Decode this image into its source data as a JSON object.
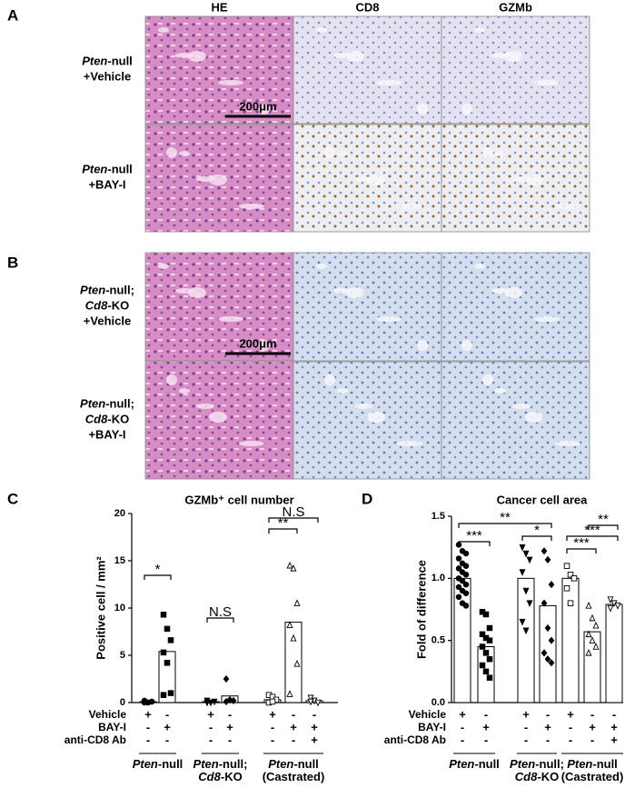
{
  "figure": {
    "panel_a": {
      "label": "A",
      "columns": [
        "HE",
        "CD8",
        "GZMb"
      ],
      "scale_bar": "200μm",
      "rows": [
        {
          "lines": [
            [
              {
                "text": "Pten",
                "italic": true
              },
              {
                "text": "-null"
              }
            ],
            [
              {
                "text": "+Vehicle"
              }
            ]
          ]
        },
        {
          "lines": [
            [
              {
                "text": "Pten",
                "italic": true
              },
              {
                "text": "-null"
              }
            ],
            [
              {
                "text": "+BAY-I"
              }
            ]
          ]
        }
      ]
    },
    "panel_b": {
      "label": "B",
      "scale_bar": "200μm",
      "rows": [
        {
          "lines": [
            [
              {
                "text": "Pten",
                "italic": true
              },
              {
                "text": "-null;"
              }
            ],
            [
              {
                "text": "Cd8",
                "italic": true
              },
              {
                "text": "-KO"
              }
            ],
            [
              {
                "text": "+Vehicle"
              }
            ]
          ]
        },
        {
          "lines": [
            [
              {
                "text": "Pten",
                "italic": true
              },
              {
                "text": "-null;"
              }
            ],
            [
              {
                "text": "Cd8",
                "italic": true
              },
              {
                "text": "-KO"
              }
            ],
            [
              {
                "text": "+BAY-I"
              }
            ]
          ]
        }
      ]
    }
  },
  "chart_data": [
    {
      "type": "bar",
      "panel_label": "C",
      "title": "GZMb⁺ cell number",
      "y_label": "Positive cell / mm²",
      "ylim": [
        0,
        20
      ],
      "yticks": [
        0,
        5,
        10,
        15,
        20
      ],
      "conditions": [
        {
          "name": "Vehicle",
          "marks": [
            "+",
            "-",
            "+",
            "-",
            "+",
            "-",
            "-"
          ]
        },
        {
          "name": "BAY-I",
          "marks": [
            "-",
            "+",
            "-",
            "+",
            "-",
            "+",
            "+"
          ]
        },
        {
          "name": "anti-CD8 Ab",
          "marks": [
            "-",
            "-",
            "-",
            "-",
            "-",
            "-",
            "+"
          ]
        }
      ],
      "groups": [
        {
          "label": [
            [
              {
                "text": "Pten",
                "italic": true
              },
              {
                "text": "-null"
              }
            ]
          ],
          "bars": [
            {
              "value": 0.1,
              "marker": "circle",
              "filled": true,
              "points": [
                0,
                0,
                0.1,
                0.2,
                0,
                0.1
              ]
            },
            {
              "value": 5.4,
              "marker": "square",
              "filled": true,
              "points": [
                9.3,
                7.8,
                6.6,
                5.3,
                4.2,
                1.0,
                0.8
              ]
            }
          ]
        },
        {
          "label": [
            [
              {
                "text": "Pten",
                "italic": true
              },
              {
                "text": "-null;"
              }
            ],
            [
              {
                "text": "Cd8",
                "italic": true
              },
              {
                "text": "-KO"
              }
            ]
          ],
          "bars": [
            {
              "value": 0.1,
              "marker": "triangle-down",
              "filled": true,
              "points": [
                0,
                0,
                0.1,
                0.2
              ]
            },
            {
              "value": 0.7,
              "marker": "diamond",
              "filled": true,
              "points": [
                2.5,
                0.3,
                0.2,
                0.1
              ]
            }
          ]
        },
        {
          "label": [
            [
              {
                "text": "Pten",
                "italic": true
              },
              {
                "text": "-null"
              }
            ],
            [
              {
                "text": "(Castrated)"
              }
            ]
          ],
          "bars": [
            {
              "value": 0.3,
              "marker": "square",
              "filled": false,
              "points": [
                0.8,
                0.6,
                0.3,
                0,
                0.1
              ]
            },
            {
              "value": 8.5,
              "marker": "triangle",
              "filled": false,
              "points": [
                14.5,
                14.2,
                10.5,
                8.2,
                6.8,
                4.1,
                0.9
              ]
            },
            {
              "value": 0.2,
              "marker": "triangle-down",
              "filled": false,
              "points": [
                0.5,
                0.2,
                0,
                0.1
              ]
            }
          ]
        }
      ],
      "significance": [
        "*",
        "N.S",
        "**",
        "N.S"
      ]
    },
    {
      "type": "bar",
      "panel_label": "D",
      "title": "Cancer cell area",
      "y_label": "Fold of difference",
      "ylim": [
        0,
        1.5
      ],
      "yticks": [
        {
          "value": 0,
          "label": "0.0"
        },
        0.5,
        {
          "value": 1,
          "label": "1.0"
        },
        1.5
      ],
      "conditions": [
        {
          "name": "Vehicle",
          "marks": [
            "+",
            "-",
            "+",
            "-",
            "+",
            "-",
            "-"
          ]
        },
        {
          "name": "BAY-I",
          "marks": [
            "-",
            "+",
            "-",
            "+",
            "-",
            "+",
            "+"
          ]
        },
        {
          "name": "anti-CD8 Ab",
          "marks": [
            "-",
            "-",
            "-",
            "-",
            "-",
            "-",
            "+"
          ]
        }
      ],
      "groups": [
        {
          "label": [
            [
              {
                "text": "Pten",
                "italic": true
              },
              {
                "text": "-null"
              }
            ]
          ],
          "bars": [
            {
              "value": 1.0,
              "marker": "circle",
              "filled": true,
              "points": [
                1.27,
                1.22,
                1.2,
                1.16,
                1.12,
                1.1,
                1.08,
                1.05,
                1.03,
                1.0,
                0.98,
                0.95,
                0.93,
                0.9,
                0.88,
                0.85,
                0.8,
                0.78
              ]
            },
            {
              "value": 0.45,
              "marker": "square",
              "filled": true,
              "points": [
                0.73,
                0.71,
                0.6,
                0.55,
                0.52,
                0.5,
                0.45,
                0.4,
                0.35,
                0.3,
                0.25,
                0.2
              ]
            }
          ]
        },
        {
          "label": [
            [
              {
                "text": "Pten",
                "italic": true
              },
              {
                "text": "-null;"
              }
            ],
            [
              {
                "text": "Cd8",
                "italic": true
              },
              {
                "text": "-KO"
              }
            ]
          ],
          "bars": [
            {
              "value": 1.0,
              "marker": "triangle-down",
              "filled": true,
              "points": [
                1.25,
                1.2,
                1.15,
                1.05,
                0.9,
                0.8,
                0.65,
                0.58
              ]
            },
            {
              "value": 0.78,
              "marker": "diamond",
              "filled": true,
              "points": [
                1.22,
                1.15,
                0.95,
                0.8,
                0.6,
                0.5,
                0.4,
                0.35,
                0.32
              ]
            }
          ]
        },
        {
          "label": [
            [
              {
                "text": "Pten",
                "italic": true
              },
              {
                "text": "-null"
              }
            ],
            [
              {
                "text": "(Castrated)"
              }
            ]
          ],
          "bars": [
            {
              "value": 1.0,
              "marker": "square",
              "filled": false,
              "points": [
                1.1,
                1.03,
                1.0,
                0.92,
                0.8
              ]
            },
            {
              "value": 0.57,
              "marker": "triangle",
              "filled": false,
              "points": [
                0.78,
                0.68,
                0.62,
                0.55,
                0.5,
                0.45,
                0.4
              ]
            },
            {
              "value": 0.79,
              "marker": "triangle-down",
              "filled": false,
              "points": [
                0.83,
                0.8,
                0.78,
                0.76
              ]
            }
          ]
        }
      ],
      "significance": [
        "***",
        "**",
        "*",
        "***",
        "***",
        "**"
      ]
    }
  ]
}
